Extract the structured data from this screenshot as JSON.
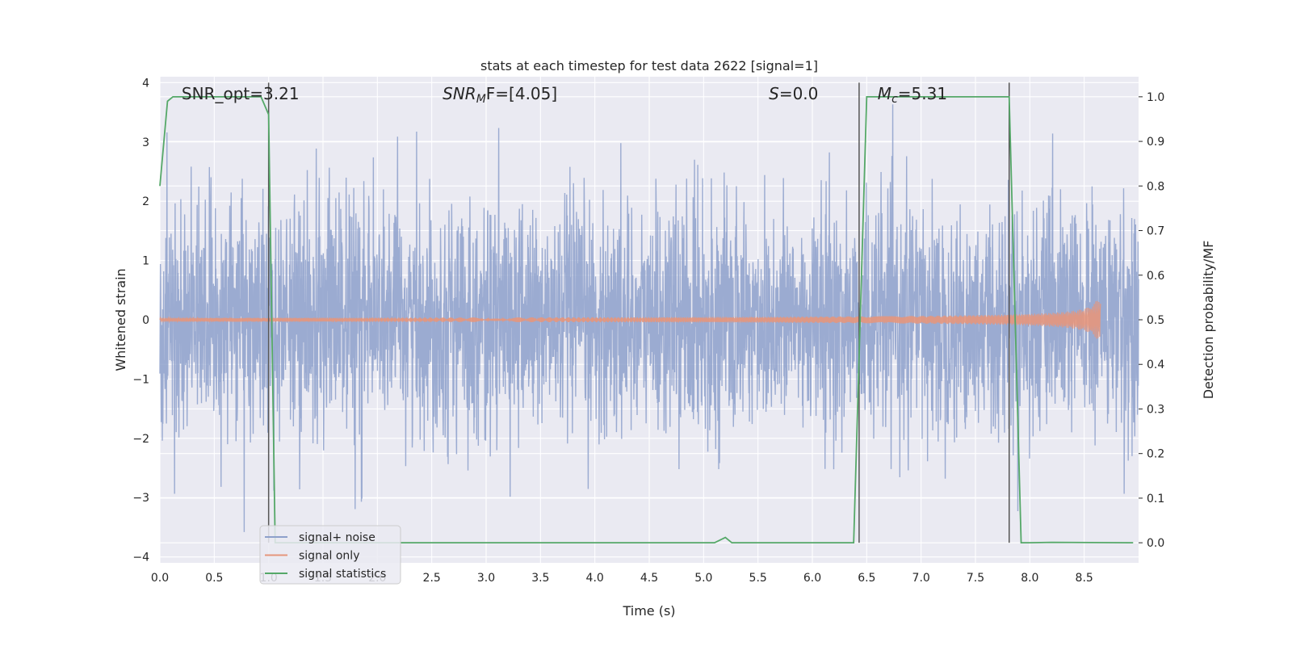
{
  "chart_data": {
    "type": "line",
    "title": "stats at each timestep for test data 2622 [signal=1]",
    "xlabel": "Time (s)",
    "ylabel": "Whitened strain",
    "y2label": "Detection probability/MF",
    "xlim": [
      0.0,
      9.0
    ],
    "ylim": [
      -4.1,
      4.1
    ],
    "y2lim": [
      -0.045,
      1.045
    ],
    "x_ticks": [
      "0.0",
      "0.5",
      "1.0",
      "1.5",
      "2.0",
      "2.5",
      "3.0",
      "3.5",
      "4.0",
      "4.5",
      "5.0",
      "5.5",
      "6.0",
      "6.5",
      "7.0",
      "7.5",
      "8.0",
      "8.5"
    ],
    "y_ticks": [
      "4",
      "3",
      "2",
      "1",
      "0",
      "−1",
      "−2",
      "−3",
      "−4"
    ],
    "y2_ticks": [
      "1.0",
      "0.9",
      "0.8",
      "0.7",
      "0.6",
      "0.5",
      "0.4",
      "0.3",
      "0.2",
      "0.1",
      "0.0"
    ],
    "grid": true,
    "legend_position": "lower-left",
    "colors": {
      "background": "#eaeaf2",
      "grid": "#ffffff",
      "signal_noise": "#8da0cb",
      "signal_only": "#e5967c",
      "signal_stats": "#55a868",
      "vlines": "#555555"
    },
    "series": [
      {
        "name": "signal+ noise",
        "description_key": "noise",
        "time_range": [
          0.0,
          9.0
        ],
        "typical_amplitude": 1.0,
        "max_abs": 4.0
      },
      {
        "name": "signal only",
        "description_key": "chirp",
        "time_range": [
          0.0,
          8.65
        ],
        "peak_amplitude": 0.32
      },
      {
        "name": "signal statistics",
        "x": [
          0.0,
          0.07,
          0.12,
          0.93,
          1.0,
          1.06,
          1.15,
          5.1,
          5.2,
          5.26,
          6.38,
          6.5,
          7.81,
          7.92,
          8.0,
          8.2,
          8.95
        ],
        "y": [
          0.8,
          0.99,
          1.0,
          1.0,
          0.96,
          0.0,
          0.0,
          0.0,
          0.012,
          0.0,
          0.0,
          1.0,
          1.0,
          0.0,
          0.0,
          0.001,
          0.0
        ]
      }
    ],
    "vlines": [
      1.0,
      6.43,
      7.81
    ],
    "annotations": [
      {
        "text": "SNR_opt=3.21",
        "x": 0.2
      },
      {
        "base": "SNR",
        "sub": "M",
        "tail": "F=[4.05]",
        "x": 2.6
      },
      {
        "base": "S",
        "tail": "=0.0",
        "x": 5.6
      },
      {
        "base": "M",
        "sub": "c",
        "tail": "=5.31",
        "x": 6.6
      }
    ]
  }
}
